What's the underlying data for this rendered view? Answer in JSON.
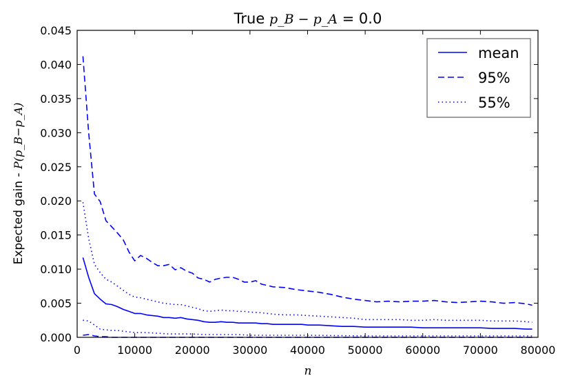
{
  "chart_data": {
    "type": "line",
    "title_prefix": "True",
    "title_math": "p_B − p_A",
    "title_suffix": "= 0.0",
    "xlabel": "n",
    "ylabel_text": "Expected gain - ",
    "ylabel_math": "P(p_B−p_A)",
    "xlim": [
      0,
      80000
    ],
    "ylim": [
      0,
      0.045
    ],
    "xticks": [
      0,
      10000,
      20000,
      30000,
      40000,
      50000,
      60000,
      70000,
      80000
    ],
    "xtick_labels": [
      "0",
      "10000",
      "20000",
      "30000",
      "40000",
      "50000",
      "60000",
      "70000",
      "80000"
    ],
    "yticks": [
      0,
      0.005,
      0.01,
      0.015,
      0.02,
      0.025,
      0.03,
      0.035,
      0.04,
      0.045
    ],
    "ytick_labels": [
      "0.000",
      "0.005",
      "0.010",
      "0.015",
      "0.020",
      "0.025",
      "0.030",
      "0.035",
      "0.040",
      "0.045"
    ],
    "grid": false,
    "legend_position": "top-right",
    "color": "#0000ff",
    "series": [
      {
        "name": "mean",
        "style": "solid",
        "points": [
          [
            1000,
            0.0117
          ],
          [
            2000,
            0.0088
          ],
          [
            3000,
            0.0064
          ],
          [
            4000,
            0.0056
          ],
          [
            5000,
            0.0049
          ],
          [
            6000,
            0.0048
          ],
          [
            7000,
            0.0045
          ],
          [
            8000,
            0.0041
          ],
          [
            9000,
            0.0038
          ],
          [
            10000,
            0.0035
          ],
          [
            11000,
            0.0035
          ],
          [
            12000,
            0.0033
          ],
          [
            13000,
            0.0032
          ],
          [
            14000,
            0.0031
          ],
          [
            15000,
            0.0029
          ],
          [
            16000,
            0.0029
          ],
          [
            17000,
            0.0028
          ],
          [
            18000,
            0.0029
          ],
          [
            19000,
            0.0027
          ],
          [
            20000,
            0.0026
          ],
          [
            21000,
            0.0025
          ],
          [
            22000,
            0.0023
          ],
          [
            23000,
            0.0022
          ],
          [
            24000,
            0.0022
          ],
          [
            25000,
            0.0023
          ],
          [
            26000,
            0.0022
          ],
          [
            27000,
            0.0022
          ],
          [
            28000,
            0.0021
          ],
          [
            29000,
            0.0021
          ],
          [
            30000,
            0.0021
          ],
          [
            31000,
            0.0021
          ],
          [
            32000,
            0.002
          ],
          [
            33000,
            0.002
          ],
          [
            34000,
            0.0019
          ],
          [
            35000,
            0.0019
          ],
          [
            36000,
            0.0019
          ],
          [
            37000,
            0.0019
          ],
          [
            38000,
            0.0019
          ],
          [
            39000,
            0.0019
          ],
          [
            40000,
            0.0018
          ],
          [
            42000,
            0.0018
          ],
          [
            44000,
            0.0017
          ],
          [
            46000,
            0.0016
          ],
          [
            48000,
            0.0016
          ],
          [
            50000,
            0.0015
          ],
          [
            52000,
            0.0015
          ],
          [
            54000,
            0.0015
          ],
          [
            56000,
            0.0015
          ],
          [
            58000,
            0.0015
          ],
          [
            60000,
            0.0014
          ],
          [
            62000,
            0.0014
          ],
          [
            64000,
            0.0014
          ],
          [
            66000,
            0.0014
          ],
          [
            68000,
            0.0014
          ],
          [
            70000,
            0.0014
          ],
          [
            72000,
            0.0013
          ],
          [
            74000,
            0.0013
          ],
          [
            76000,
            0.0013
          ],
          [
            78000,
            0.0012
          ],
          [
            79000,
            0.0012
          ]
        ]
      },
      {
        "name": "95%",
        "style": "dashed",
        "points": [
          [
            1000,
            0.0412
          ],
          [
            2000,
            0.03
          ],
          [
            3000,
            0.021
          ],
          [
            4000,
            0.0199
          ],
          [
            5000,
            0.0171
          ],
          [
            6000,
            0.0162
          ],
          [
            7000,
            0.0153
          ],
          [
            8000,
            0.0143
          ],
          [
            9000,
            0.0125
          ],
          [
            10000,
            0.0112
          ],
          [
            11000,
            0.012
          ],
          [
            12000,
            0.0116
          ],
          [
            13000,
            0.011
          ],
          [
            14000,
            0.0105
          ],
          [
            15000,
            0.0105
          ],
          [
            16000,
            0.0107
          ],
          [
            17000,
            0.0099
          ],
          [
            18000,
            0.0102
          ],
          [
            19000,
            0.0097
          ],
          [
            20000,
            0.0094
          ],
          [
            21000,
            0.0087
          ],
          [
            22000,
            0.0085
          ],
          [
            23000,
            0.0081
          ],
          [
            24000,
            0.0085
          ],
          [
            25000,
            0.0087
          ],
          [
            26000,
            0.0088
          ],
          [
            27000,
            0.0088
          ],
          [
            28000,
            0.0085
          ],
          [
            29000,
            0.0081
          ],
          [
            30000,
            0.0081
          ],
          [
            31000,
            0.0083
          ],
          [
            32000,
            0.0078
          ],
          [
            33000,
            0.0076
          ],
          [
            34000,
            0.0074
          ],
          [
            36000,
            0.0073
          ],
          [
            38000,
            0.007
          ],
          [
            40000,
            0.0068
          ],
          [
            42000,
            0.0066
          ],
          [
            44000,
            0.0063
          ],
          [
            46000,
            0.0059
          ],
          [
            48000,
            0.0056
          ],
          [
            50000,
            0.0054
          ],
          [
            52000,
            0.0052
          ],
          [
            54000,
            0.0053
          ],
          [
            56000,
            0.0052
          ],
          [
            58000,
            0.0053
          ],
          [
            60000,
            0.0053
          ],
          [
            62000,
            0.0054
          ],
          [
            64000,
            0.0052
          ],
          [
            66000,
            0.0051
          ],
          [
            68000,
            0.0052
          ],
          [
            70000,
            0.0053
          ],
          [
            72000,
            0.0052
          ],
          [
            74000,
            0.005
          ],
          [
            76000,
            0.0051
          ],
          [
            78000,
            0.0049
          ],
          [
            79000,
            0.0047
          ]
        ]
      },
      {
        "name": "55%",
        "style": "dotted",
        "points": [
          [
            1000,
            0.0198
          ],
          [
            2000,
            0.0145
          ],
          [
            3000,
            0.0107
          ],
          [
            4000,
            0.0095
          ],
          [
            5000,
            0.0085
          ],
          [
            6000,
            0.0081
          ],
          [
            7000,
            0.0075
          ],
          [
            8000,
            0.0069
          ],
          [
            9000,
            0.0063
          ],
          [
            10000,
            0.0059
          ],
          [
            11000,
            0.0058
          ],
          [
            12000,
            0.0056
          ],
          [
            13000,
            0.0054
          ],
          [
            14000,
            0.0052
          ],
          [
            15000,
            0.005
          ],
          [
            16000,
            0.0049
          ],
          [
            17000,
            0.0048
          ],
          [
            18000,
            0.0048
          ],
          [
            19000,
            0.0046
          ],
          [
            20000,
            0.0044
          ],
          [
            21000,
            0.0042
          ],
          [
            22000,
            0.0039
          ],
          [
            23000,
            0.0038
          ],
          [
            24000,
            0.0039
          ],
          [
            25000,
            0.004
          ],
          [
            26000,
            0.0039
          ],
          [
            27000,
            0.0039
          ],
          [
            28000,
            0.0038
          ],
          [
            29000,
            0.0038
          ],
          [
            30000,
            0.0037
          ],
          [
            32000,
            0.0036
          ],
          [
            34000,
            0.0034
          ],
          [
            36000,
            0.0033
          ],
          [
            38000,
            0.0033
          ],
          [
            40000,
            0.0032
          ],
          [
            42000,
            0.0031
          ],
          [
            44000,
            0.003
          ],
          [
            46000,
            0.0029
          ],
          [
            48000,
            0.0028
          ],
          [
            50000,
            0.0026
          ],
          [
            52000,
            0.0026
          ],
          [
            54000,
            0.0026
          ],
          [
            56000,
            0.0026
          ],
          [
            58000,
            0.0025
          ],
          [
            60000,
            0.0025
          ],
          [
            62000,
            0.0026
          ],
          [
            64000,
            0.0025
          ],
          [
            66000,
            0.0025
          ],
          [
            68000,
            0.0025
          ],
          [
            70000,
            0.0025
          ],
          [
            72000,
            0.0024
          ],
          [
            74000,
            0.0024
          ],
          [
            76000,
            0.0024
          ],
          [
            78000,
            0.0023
          ],
          [
            79000,
            0.0022
          ]
        ]
      },
      {
        "name": "",
        "style": "dotted",
        "points": [
          [
            1000,
            0.0025
          ],
          [
            2000,
            0.0024
          ],
          [
            3000,
            0.0018
          ],
          [
            4000,
            0.0012
          ],
          [
            5000,
            0.0011
          ],
          [
            6000,
            0.001
          ],
          [
            7000,
            0.001
          ],
          [
            8000,
            0.0009
          ],
          [
            9000,
            0.0008
          ],
          [
            10000,
            0.0007
          ],
          [
            12000,
            0.0007
          ],
          [
            14000,
            0.0006
          ],
          [
            16000,
            0.0005
          ],
          [
            18000,
            0.0005
          ],
          [
            20000,
            0.0005
          ],
          [
            22000,
            0.0004
          ],
          [
            24000,
            0.0004
          ],
          [
            26000,
            0.0004
          ],
          [
            28000,
            0.0004
          ],
          [
            30000,
            0.0003
          ],
          [
            35000,
            0.0003
          ],
          [
            40000,
            0.0003
          ],
          [
            50000,
            0.0002
          ],
          [
            60000,
            0.0002
          ],
          [
            70000,
            0.0002
          ],
          [
            79000,
            0.0002
          ]
        ]
      },
      {
        "name": "",
        "style": "dashed",
        "points": [
          [
            1000,
            0.0003
          ],
          [
            2000,
            0.0004
          ],
          [
            3000,
            0.0002
          ],
          [
            4000,
            0.0001
          ],
          [
            5000,
            0.0001
          ],
          [
            6000,
            0.0
          ],
          [
            10000,
            0.0
          ],
          [
            12000,
            0.0
          ],
          [
            15000,
            0.0
          ],
          [
            20000,
            0.0
          ],
          [
            30000,
            0.0
          ],
          [
            40000,
            0.0
          ],
          [
            50000,
            0.0
          ],
          [
            60000,
            0.0
          ],
          [
            70000,
            0.0
          ],
          [
            79000,
            0.0
          ]
        ]
      }
    ]
  }
}
